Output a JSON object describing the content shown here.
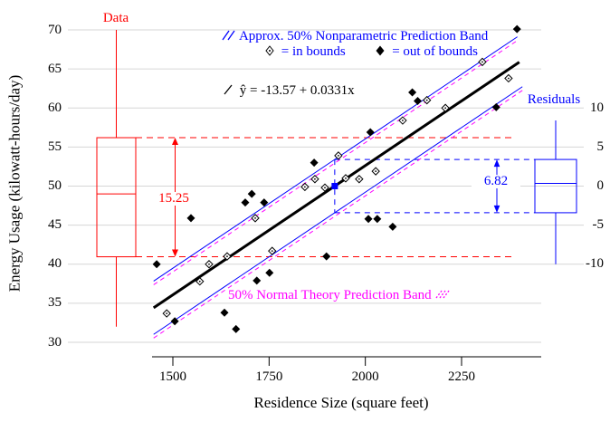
{
  "chart_data": {
    "type": "scatter",
    "title": "",
    "xlabel": "Residence Size (square feet)",
    "ylabel": "Energy Usage (kilowatt-hours/day)",
    "x_ticks": [
      1500,
      1750,
      2000,
      2250
    ],
    "y_ticks": [
      30,
      35,
      40,
      45,
      50,
      55,
      60,
      65,
      70
    ],
    "xlim": [
      1446,
      2457
    ],
    "ylim": [
      28,
      70.5
    ],
    "grid": true,
    "right_axis": {
      "label": "Residuals",
      "ticks": [
        10,
        5,
        0,
        -5,
        -10
      ],
      "centered_at_y": 50
    },
    "regression_line": {
      "equation_label": "ŷ = -13.57 + 0.0331x",
      "intercept": -13.57,
      "slope": 0.0331,
      "x_start": 1450,
      "x_end": 2400,
      "color": "#000000"
    },
    "nonparametric_band": {
      "label": "Approx. 50% Nonparametric Prediction Band",
      "halfwidth": 3.41,
      "x_start": 1450,
      "x_end_upper": 2395,
      "x_end_lower": 2408,
      "color": "#0000ff"
    },
    "normal_band": {
      "label": "50% Normal Theory Prediction Band",
      "color": "#ff00ff"
    },
    "legend_in_bounds": "= in bounds",
    "legend_out_of_bounds": "= out of bounds",
    "in_bounds_points": [
      [
        1484,
        33.7
      ],
      [
        1570,
        37.8
      ],
      [
        1594,
        40.0
      ],
      [
        1641,
        41.0
      ],
      [
        1714,
        45.9
      ],
      [
        1758,
        41.7
      ],
      [
        1843,
        49.9
      ],
      [
        1869,
        50.9
      ],
      [
        1895,
        49.8
      ],
      [
        1930,
        53.9
      ],
      [
        1949,
        51.0
      ],
      [
        1984,
        50.9
      ],
      [
        2027,
        51.9
      ],
      [
        2097,
        58.4
      ],
      [
        2160,
        61.0
      ],
      [
        2208,
        60.0
      ],
      [
        2304,
        65.9
      ],
      [
        2372,
        63.8
      ]
    ],
    "out_of_bounds_points": [
      [
        1458,
        40.0
      ],
      [
        1505,
        32.7
      ],
      [
        1547,
        45.9
      ],
      [
        1634,
        33.8
      ],
      [
        1664,
        31.7
      ],
      [
        1688,
        47.9
      ],
      [
        1705,
        49.0
      ],
      [
        1718,
        37.9
      ],
      [
        1737,
        47.9
      ],
      [
        1751,
        38.9
      ],
      [
        1867,
        53.0
      ],
      [
        1899,
        41.0
      ],
      [
        2008,
        45.8
      ],
      [
        2013,
        56.9
      ],
      [
        2031,
        45.8
      ],
      [
        2071,
        44.8
      ],
      [
        2122,
        62.0
      ],
      [
        2136,
        60.9
      ],
      [
        2340,
        60.1
      ],
      [
        2394,
        70.1
      ]
    ],
    "center_marker": {
      "x": 1920.5,
      "y": 50.0,
      "color": "#0000ff"
    },
    "data_boxplot": {
      "label": "Data",
      "whisker_high": 70,
      "q3": 56.2,
      "median": 49,
      "q1": 40.95,
      "whisker_low": 32,
      "iqr_label": "15.25",
      "color": "#ff0000"
    },
    "residual_boxplot": {
      "q3": 3.41,
      "median": 0.35,
      "q1": -3.41,
      "whisker_high": 8.4,
      "whisker_low": -10.0,
      "width_label": "6.82",
      "color": "#0000ff"
    }
  },
  "colors": {
    "red": "#ff0000",
    "blue": "#0000ff",
    "magenta": "#ff00ff",
    "black": "#000000",
    "grid": "#d6d6d6"
  }
}
